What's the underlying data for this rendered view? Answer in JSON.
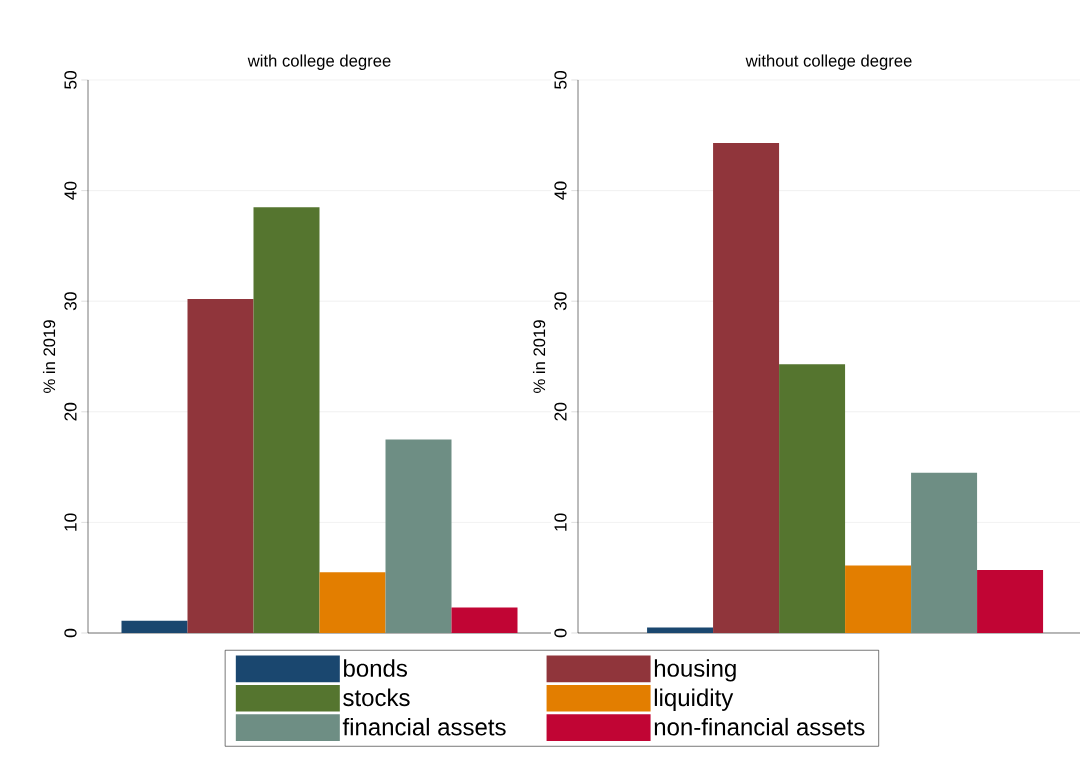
{
  "chart_data": [
    {
      "type": "bar",
      "title": "with college degree",
      "ylabel": "% in 2019",
      "categories": [
        null
      ],
      "ylim": [
        0,
        50
      ],
      "yticks": [
        0,
        10,
        20,
        30,
        40,
        50
      ],
      "grid": "y",
      "legend": "bottom",
      "series": [
        {
          "name": "bonds",
          "color": "#1a476f",
          "values": [
            1.1
          ]
        },
        {
          "name": "housing",
          "color": "#90353b",
          "values": [
            30.2
          ]
        },
        {
          "name": "stocks",
          "color": "#55752f",
          "values": [
            38.5
          ]
        },
        {
          "name": "liquidity",
          "color": "#e37e00",
          "values": [
            5.5
          ]
        },
        {
          "name": "financial assets",
          "color": "#6e8e84",
          "values": [
            17.5
          ]
        },
        {
          "name": "non-financial assets",
          "color": "#c10534",
          "values": [
            2.3
          ]
        }
      ]
    },
    {
      "type": "bar",
      "title": "without college degree",
      "ylabel": "% in 2019",
      "categories": [
        null
      ],
      "ylim": [
        0,
        50
      ],
      "yticks": [
        0,
        10,
        20,
        30,
        40,
        50
      ],
      "grid": "y",
      "series": [
        {
          "color": "#1a476f",
          "values": [
            0.5
          ]
        },
        {
          "color": "#90353b",
          "values": [
            44.3
          ]
        },
        {
          "color": "#55752f",
          "values": [
            24.3
          ]
        },
        {
          "color": "#e37e00",
          "values": [
            6.1
          ]
        },
        {
          "color": "#6e8e84",
          "values": [
            14.5
          ]
        },
        {
          "color": "#c10534",
          "values": [
            5.7
          ]
        }
      ]
    }
  ]
}
